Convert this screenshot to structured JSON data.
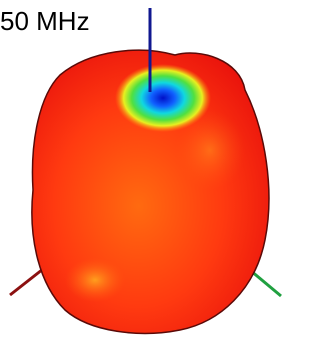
{
  "label": "50 MHz"
}
